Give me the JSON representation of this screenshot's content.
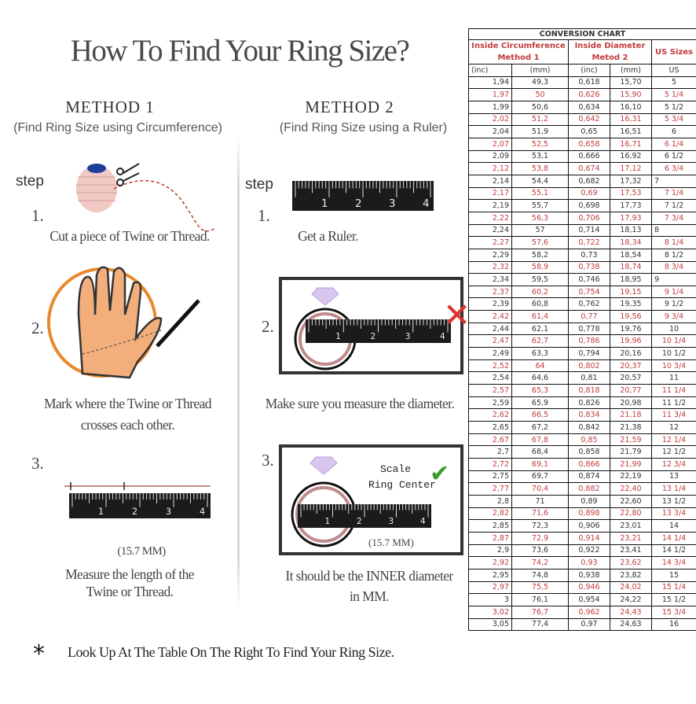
{
  "title": "How To Find Your Ring Size?",
  "method1": {
    "heading": "METHOD 1",
    "subtitle": "(Find Ring Size using Circumference)",
    "step_label": "step",
    "steps": [
      {
        "num": "1.",
        "lines": [
          "Cut a piece of Twine or Thread."
        ]
      },
      {
        "num": "2.",
        "lines": [
          "Mark where the Twine or Thread",
          "crosses each other."
        ]
      },
      {
        "num": "3.",
        "measure": "(15.7 MM)",
        "lines": [
          "Measure the length of the",
          "Twine or Thread."
        ]
      }
    ]
  },
  "method2": {
    "heading": "METHOD 2",
    "subtitle": "(Find Ring Size using a Ruler)",
    "step_label": "step",
    "steps": [
      {
        "num": "1.",
        "lines": [
          "Get a Ruler."
        ]
      },
      {
        "num": "2.",
        "lines": [
          "Make sure you measure the diameter."
        ]
      },
      {
        "num": "3.",
        "scale": "Scale",
        "ring_center": "Ring Center",
        "measure": "(15.7 MM)",
        "lines": [
          "It should be the INNER diameter",
          "in MM."
        ]
      }
    ]
  },
  "ruler_labels": [
    "1",
    "2",
    "3",
    "4"
  ],
  "footer": {
    "bullet": "*",
    "text": "Look Up At The Table On The Right To Find Your Ring Size."
  },
  "colors": {
    "accent_red": "#c23b3d",
    "check_green": "#3a9a2a",
    "cross_red": "#e03030",
    "hand_circle": "#e8892c"
  },
  "chart_data": {
    "type": "table",
    "title": "CONVERSION CHART",
    "group_headers": [
      "Inside Circumference Method 1",
      "Inside Diameter Metod 2",
      "US Sizes"
    ],
    "group_header_lines": [
      [
        "Inside Circumference",
        "Method 1"
      ],
      [
        "Inside Diameter",
        "Metod 2"
      ],
      [
        "US Sizes"
      ]
    ],
    "columns": [
      "(inc)",
      "(mm)",
      "(inc)",
      "(mm)",
      "US"
    ],
    "rows": [
      [
        "1,94",
        "49,3",
        "0,618",
        "15,70",
        "5"
      ],
      [
        "1,97",
        "50",
        "0,626",
        "15,90",
        "5 1/4"
      ],
      [
        "1,99",
        "50,6",
        "0,634",
        "16,10",
        "5 1/2"
      ],
      [
        "2,02",
        "51,2",
        "0,642",
        "16,31",
        "5 3/4"
      ],
      [
        "2,04",
        "51,9",
        "0,65",
        "16,51",
        "6"
      ],
      [
        "2,07",
        "52,5",
        "0,658",
        "16,71",
        "6 1/4"
      ],
      [
        "2,09",
        "53,1",
        "0,666",
        "16,92",
        "6 1/2"
      ],
      [
        "2,12",
        "53,8",
        "0,674",
        "17,12",
        "6 3/4"
      ],
      [
        "2,14",
        "54,4",
        "0,682",
        "17,32",
        "7"
      ],
      [
        "2,17",
        "55,1",
        "0,69",
        "17,53",
        "7 1/4"
      ],
      [
        "2,19",
        "55,7",
        "0,698",
        "17,73",
        "7 1/2"
      ],
      [
        "2,22",
        "56,3",
        "0,706",
        "17,93",
        "7 3/4"
      ],
      [
        "2,24",
        "57",
        "0,714",
        "18,13",
        "8"
      ],
      [
        "2,27",
        "57,6",
        "0,722",
        "18,34",
        "8 1/4"
      ],
      [
        "2,29",
        "58,2",
        "0,73",
        "18,54",
        "8 1/2"
      ],
      [
        "2,32",
        "58,9",
        "0,738",
        "18,74",
        "8 3/4"
      ],
      [
        "2,34",
        "59,5",
        "0,746",
        "18,95",
        "9"
      ],
      [
        "2,37",
        "60,2",
        "0,754",
        "19,15",
        "9 1/4"
      ],
      [
        "2,39",
        "60,8",
        "0,762",
        "19,35",
        "9 1/2"
      ],
      [
        "2,42",
        "61,4",
        "0,77",
        "19,56",
        "9 3/4"
      ],
      [
        "2,44",
        "62,1",
        "0,778",
        "19,76",
        "10"
      ],
      [
        "2,47",
        "62,7",
        "0,786",
        "19,96",
        "10 1/4"
      ],
      [
        "2,49",
        "63,3",
        "0,794",
        "20,16",
        "10 1/2"
      ],
      [
        "2,52",
        "64",
        "0,802",
        "20,37",
        "10 3/4"
      ],
      [
        "2,54",
        "64,6",
        "0,81",
        "20,57",
        "11"
      ],
      [
        "2,57",
        "65,3",
        "0,818",
        "20,77",
        "11 1/4"
      ],
      [
        "2,59",
        "65,9",
        "0,826",
        "20,98",
        "11 1/2"
      ],
      [
        "2,62",
        "66,5",
        "0,834",
        "21,18",
        "11 3/4"
      ],
      [
        "2,65",
        "67,2",
        "0,842",
        "21,38",
        "12"
      ],
      [
        "2,67",
        "67,8",
        "0,85",
        "21,59",
        "12 1/4"
      ],
      [
        "2,7",
        "68,4",
        "0,858",
        "21,79",
        "12 1/2"
      ],
      [
        "2,72",
        "69,1",
        "0,866",
        "21,99",
        "12 3/4"
      ],
      [
        "2,75",
        "69,7",
        "0,874",
        "22,19",
        "13"
      ],
      [
        "2,77",
        "70,4",
        "0,882",
        "22,40",
        "13 1/4"
      ],
      [
        "2,8",
        "71",
        "0,89",
        "22,60",
        "13 1/2"
      ],
      [
        "2,82",
        "71,6",
        "0,898",
        "22,80",
        "13 3/4"
      ],
      [
        "2,85",
        "72,3",
        "0,906",
        "23,01",
        "14"
      ],
      [
        "2,87",
        "72,9",
        "0,914",
        "23,21",
        "14 1/4"
      ],
      [
        "2,9",
        "73,6",
        "0,922",
        "23,41",
        "14 1/2"
      ],
      [
        "2,92",
        "74,2",
        "0,93",
        "23,62",
        "14 3/4"
      ],
      [
        "2,95",
        "74,8",
        "0,938",
        "23,82",
        "15"
      ],
      [
        "2,97",
        "75,5",
        "0,946",
        "24,02",
        "15 1/4"
      ],
      [
        "3",
        "76,1",
        "0,954",
        "24,22",
        "15 1/2"
      ],
      [
        "3,02",
        "76,7",
        "0,962",
        "24,43",
        "15 3/4"
      ],
      [
        "3,05",
        "77,4",
        "0,97",
        "24,63",
        "16"
      ]
    ]
  }
}
